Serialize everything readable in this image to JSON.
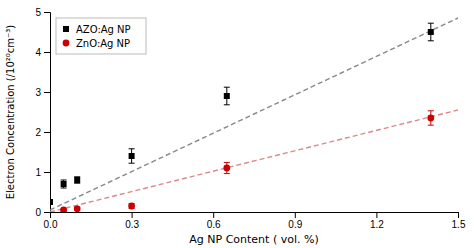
{
  "chart_data": {
    "type": "scatter",
    "xlabel": "Ag NP Content ( vol. %)",
    "ylabel": "Electron Concentration (/10²⁰cm⁻³)",
    "xlim": [
      0,
      1.5
    ],
    "ylim": [
      0,
      5
    ],
    "xticks": [
      {
        "value": 0.0,
        "label": "0.0"
      },
      0.3,
      0.6,
      0.9,
      1.2,
      1.5
    ],
    "yticks": [
      0,
      1,
      2,
      3,
      4,
      5
    ],
    "grid": false,
    "legend": "upper left",
    "series": [
      {
        "name": "AZO:Ag NP",
        "type": "scatter",
        "color": "#000000",
        "marker": "square",
        "x": [
          0.0,
          0.05,
          0.1,
          0.3,
          0.65,
          1.4
        ],
        "values": [
          0.25,
          0.7,
          0.8,
          1.4,
          2.9,
          4.5
        ],
        "errors": [
          0.05,
          0.1,
          0.08,
          0.18,
          0.22,
          0.22
        ]
      },
      {
        "name": "ZnO:Ag NP",
        "type": "scatter",
        "color": "#cc0000",
        "marker": "circle",
        "x": [
          0.05,
          0.1,
          0.3,
          0.65,
          1.4
        ],
        "values": [
          0.05,
          0.08,
          0.15,
          1.1,
          2.35
        ],
        "errors": [
          0.03,
          0.04,
          0.06,
          0.14,
          0.18
        ]
      },
      {
        "type": "line",
        "color": "#888888",
        "line_style": "dashed",
        "x": [
          0,
          1.5
        ],
        "values": [
          0.05,
          4.85
        ]
      },
      {
        "type": "line",
        "color": "#dd8888",
        "line_style": "dashed",
        "x": [
          0,
          1.5
        ],
        "values": [
          0.0,
          2.55
        ]
      }
    ]
  }
}
